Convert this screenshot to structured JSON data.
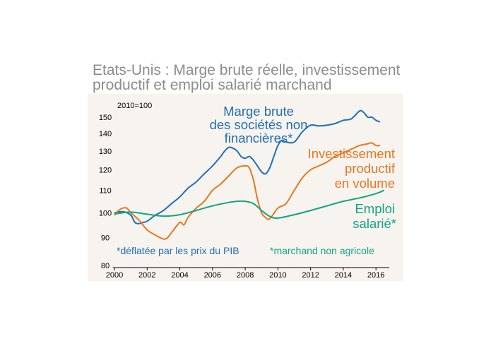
{
  "title": {
    "line1": "Etats-Unis : Marge brute réelle, investissement",
    "line2": "productif et emploi salarié marchand"
  },
  "colors": {
    "panel": "#f7f3ee",
    "margin": "#1f6fb8",
    "investment": "#e87722",
    "employment": "#13a582"
  },
  "chart_data": {
    "type": "line",
    "base_label": "2010=100",
    "log_scale": true,
    "ylim": [
      80,
      155
    ],
    "xlim": [
      2000,
      2016.9
    ],
    "yticks": [
      80,
      90,
      100,
      110,
      120,
      130,
      140,
      150
    ],
    "xticks": [
      2000,
      2002,
      2004,
      2006,
      2008,
      2010,
      2012,
      2014,
      2016
    ],
    "grid": false,
    "series": [
      {
        "key": "margin",
        "label_lines": [
          "Marge brute",
          "des sociétés non",
          "financières*"
        ],
        "x": [
          2000,
          2000.5,
          2001,
          2001.25,
          2001.5,
          2001.75,
          2002,
          2002.5,
          2003,
          2003.5,
          2004,
          2004.5,
          2005,
          2005.5,
          2006,
          2006.5,
          2006.75,
          2007,
          2007.25,
          2007.5,
          2007.75,
          2008,
          2008.25,
          2008.5,
          2008.75,
          2009,
          2009.25,
          2009.5,
          2009.75,
          2010,
          2010.25,
          2010.5,
          2011,
          2011.5,
          2012,
          2012.5,
          2013,
          2013.5,
          2014,
          2014.5,
          2015,
          2015.25,
          2015.5,
          2015.75,
          2016,
          2016.25
        ],
        "values": [
          100,
          100.5,
          99,
          96,
          95.5,
          96,
          96.5,
          99,
          101,
          104,
          107,
          111,
          114,
          118,
          122,
          127,
          130,
          132,
          131.5,
          130,
          127,
          126,
          127,
          125,
          122,
          119,
          118,
          121,
          127,
          133,
          136,
          135,
          135,
          141,
          145,
          144.5,
          145,
          146,
          148,
          149,
          154,
          153,
          150,
          150,
          148,
          147
        ]
      },
      {
        "key": "investment",
        "label_lines": [
          "Investissement",
          "productif",
          "en volume"
        ],
        "x": [
          2000,
          2000.25,
          2000.5,
          2000.75,
          2001,
          2001.5,
          2002,
          2002.5,
          2003,
          2003.25,
          2003.5,
          2004,
          2004.25,
          2004.5,
          2005,
          2005.5,
          2006,
          2006.5,
          2007,
          2007.5,
          2008,
          2008.25,
          2008.5,
          2008.75,
          2009,
          2009.25,
          2009.5,
          2010,
          2010.5,
          2011,
          2011.5,
          2012,
          2012.5,
          2013,
          2013.5,
          2014,
          2014.5,
          2015,
          2015.5,
          2015.75,
          2016,
          2016.25
        ],
        "values": [
          99,
          101,
          102,
          102,
          100,
          97,
          93,
          91,
          89.5,
          90,
          92,
          96,
          95,
          98,
          102,
          105,
          110,
          113,
          117,
          121,
          122,
          121,
          115,
          106,
          100,
          98,
          97.5,
          102,
          104,
          110,
          116,
          120,
          122,
          124,
          127,
          129,
          131,
          133,
          134,
          134.5,
          133,
          133
        ]
      },
      {
        "key": "employment",
        "label_lines": [
          "Emploi",
          "salarié*"
        ],
        "x": [
          2000,
          2001,
          2002,
          2003,
          2004,
          2005,
          2006,
          2007,
          2007.5,
          2008,
          2008.5,
          2009,
          2009.5,
          2010,
          2011,
          2012,
          2013,
          2014,
          2015,
          2016,
          2016.5
        ],
        "values": [
          99.5,
          100.3,
          99.4,
          98.6,
          99.2,
          101,
          103,
          104.5,
          105,
          105,
          104,
          101,
          98.5,
          97.8,
          99.2,
          101,
          103,
          105,
          106.5,
          108.5,
          110
        ]
      }
    ],
    "footnotes": {
      "left": "*déflatée par les prix du PIB",
      "right": "*marchand non agricole"
    }
  }
}
